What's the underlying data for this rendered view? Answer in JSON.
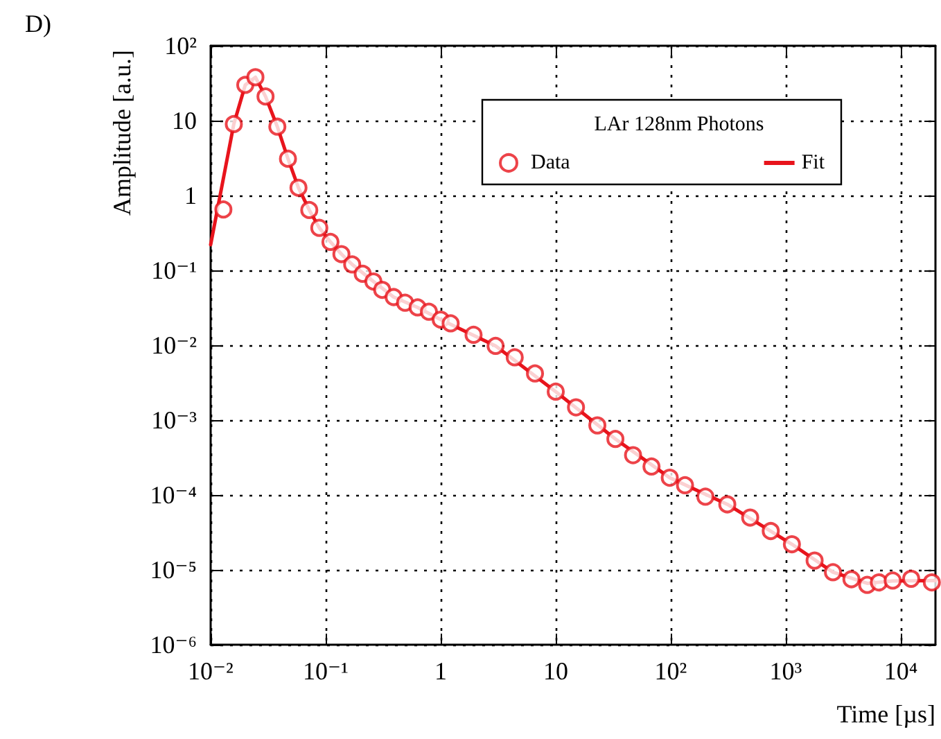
{
  "chart_data": {
    "type": "scatter",
    "xlabel": "Time [µs]",
    "ylabel": "Amplitude [a.u.]",
    "legend_title": "LAr 128nm Photons",
    "annotations": [
      "D)"
    ],
    "log": "xy",
    "grid": true,
    "legend": "top right",
    "xlim": [
      0.01,
      20000
    ],
    "ylim": [
      1e-06,
      100
    ],
    "xticks": [
      {
        "value": 0.01,
        "label": "10⁻²"
      },
      {
        "value": 0.1,
        "label": "10⁻¹"
      },
      1,
      10,
      {
        "value": 100,
        "label": "10²"
      },
      {
        "value": 1000,
        "label": "10³"
      },
      {
        "value": 10000,
        "label": "10⁴"
      }
    ],
    "yticks": [
      {
        "value": 1e-06,
        "label": "10⁻⁶"
      },
      {
        "value": 1e-05,
        "label": "10⁻⁵"
      },
      {
        "value": 0.0001,
        "label": "10⁻⁴"
      },
      {
        "value": 0.001,
        "label": "10⁻³"
      },
      {
        "value": 0.01,
        "label": "10⁻²"
      },
      {
        "value": 0.1,
        "label": "10⁻¹"
      },
      1,
      10,
      {
        "value": 100,
        "label": "10²"
      }
    ],
    "series": [
      {
        "name": "Data",
        "marker": "circle",
        "color": "#e8141c",
        "x": [
          0.0129,
          0.0159,
          0.02,
          0.0245,
          0.03,
          0.038,
          0.047,
          0.058,
          0.072,
          0.088,
          0.11,
          0.137,
          0.17,
          0.21,
          0.26,
          0.31,
          0.39,
          0.49,
          0.63,
          0.79,
          1.0,
          1.22,
          1.93,
          3.0,
          4.4,
          6.6,
          10,
          15,
          23,
          33,
          47,
          68,
          98,
          133,
          200,
          310,
          490,
          740,
          1130,
          1780,
          2570,
          3720,
          5100,
          6450,
          8500,
          12300,
          18600
        ],
        "values": [
          0.65,
          9,
          30,
          38,
          21,
          8.3,
          3.1,
          1.27,
          0.64,
          0.37,
          0.24,
          0.165,
          0.12,
          0.09,
          0.071,
          0.055,
          0.044,
          0.037,
          0.032,
          0.028,
          0.022,
          0.0196,
          0.0138,
          0.0098,
          0.0069,
          0.0042,
          0.0024,
          0.00148,
          0.00085,
          0.00056,
          0.00034,
          0.00024,
          0.00017,
          0.000135,
          9.5e-05,
          7.5e-05,
          5e-05,
          3.3e-05,
          2.2e-05,
          1.33e-05,
          9.3e-06,
          7.5e-06,
          6.3e-06,
          6.8e-06,
          7.2e-06,
          7.6e-06,
          6.8e-06
        ]
      },
      {
        "name": "Fit",
        "type": "line",
        "marker": "none",
        "line_style": "solid",
        "color": "#e8141c",
        "x": [
          0.01,
          0.0159,
          0.02,
          0.0245,
          0.03,
          0.038,
          0.047,
          0.058,
          0.072,
          0.088,
          0.11,
          0.137,
          0.17,
          0.26,
          0.39,
          0.63,
          1.0,
          3.0,
          10,
          33,
          98,
          310,
          1130,
          2570,
          5100,
          8500,
          20000
        ],
        "values": [
          0.22,
          9,
          30,
          38,
          21,
          8.3,
          3.1,
          1.27,
          0.64,
          0.37,
          0.24,
          0.165,
          0.12,
          0.071,
          0.044,
          0.032,
          0.022,
          0.0098,
          0.0024,
          0.00056,
          0.00017,
          7.5e-05,
          2.2e-05,
          9.3e-06,
          6.6e-06,
          7.1e-06,
          7.2e-06
        ]
      }
    ]
  }
}
